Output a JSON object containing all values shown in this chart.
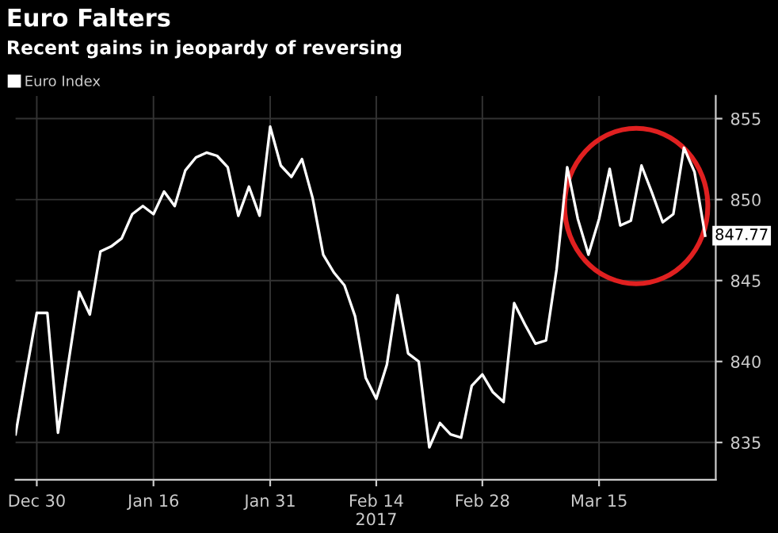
{
  "chart_data": {
    "type": "line",
    "title": "Euro Falters",
    "subtitle": "Recent gains in jeopardy of reversing",
    "categories": [
      null,
      null,
      "Dec 30",
      null,
      null,
      null,
      null,
      null,
      null,
      null,
      null,
      null,
      null,
      "Jan 16",
      null,
      null,
      null,
      null,
      null,
      null,
      null,
      null,
      null,
      null,
      "Jan 31",
      null,
      null,
      null,
      null,
      null,
      null,
      null,
      null,
      null,
      "Feb 14\n2017",
      null,
      null,
      null,
      null,
      null,
      null,
      null,
      null,
      null,
      "Feb 28",
      null,
      null,
      null,
      null,
      null,
      null,
      null,
      null,
      null,
      null,
      "Mar 15",
      null,
      null,
      null,
      null,
      null,
      null,
      null,
      null,
      null,
      null
    ],
    "series": [
      {
        "name": "Euro Index",
        "color": "#ffffff",
        "values": [
          835.5,
          839.3,
          843.0,
          843.0,
          835.6,
          840.0,
          844.3,
          842.9,
          846.8,
          847.1,
          847.6,
          849.1,
          849.6,
          849.1,
          850.5,
          849.6,
          851.8,
          852.6,
          852.9,
          852.7,
          852.0,
          849.0,
          850.8,
          849.0,
          854.5,
          852.1,
          851.4,
          852.5,
          850.1,
          846.6,
          845.5,
          844.7,
          842.8,
          839.0,
          837.7,
          839.8,
          844.1,
          840.5,
          840.0,
          834.7,
          836.2,
          835.5,
          835.3,
          838.5,
          839.2,
          838.1,
          837.5,
          843.6,
          842.3,
          841.1,
          841.3,
          845.7,
          852.0,
          848.8,
          846.6,
          848.8,
          851.9,
          848.4,
          848.7,
          852.1,
          850.4,
          848.6,
          849.1,
          853.2,
          851.7,
          847.77
        ],
        "value_labels": [
          null,
          null,
          null,
          null,
          null,
          null,
          null,
          null,
          null,
          null,
          null,
          null,
          null,
          null,
          null,
          null,
          null,
          null,
          null,
          null,
          null,
          null,
          null,
          null,
          null,
          null,
          null,
          null,
          null,
          null,
          null,
          null,
          null,
          null,
          null,
          null,
          null,
          null,
          null,
          null,
          null,
          null,
          null,
          null,
          null,
          null,
          null,
          null,
          null,
          null,
          null,
          null,
          null,
          null,
          null,
          null,
          null,
          null,
          null,
          null,
          null,
          null,
          null,
          null,
          null,
          "847.77"
        ]
      }
    ],
    "ylim": [
      832.7,
      856.4
    ],
    "yticks": [
      835,
      840,
      845,
      850,
      855
    ],
    "grid": true,
    "legend": "top left",
    "marker": "none",
    "line_style": "solid"
  }
}
